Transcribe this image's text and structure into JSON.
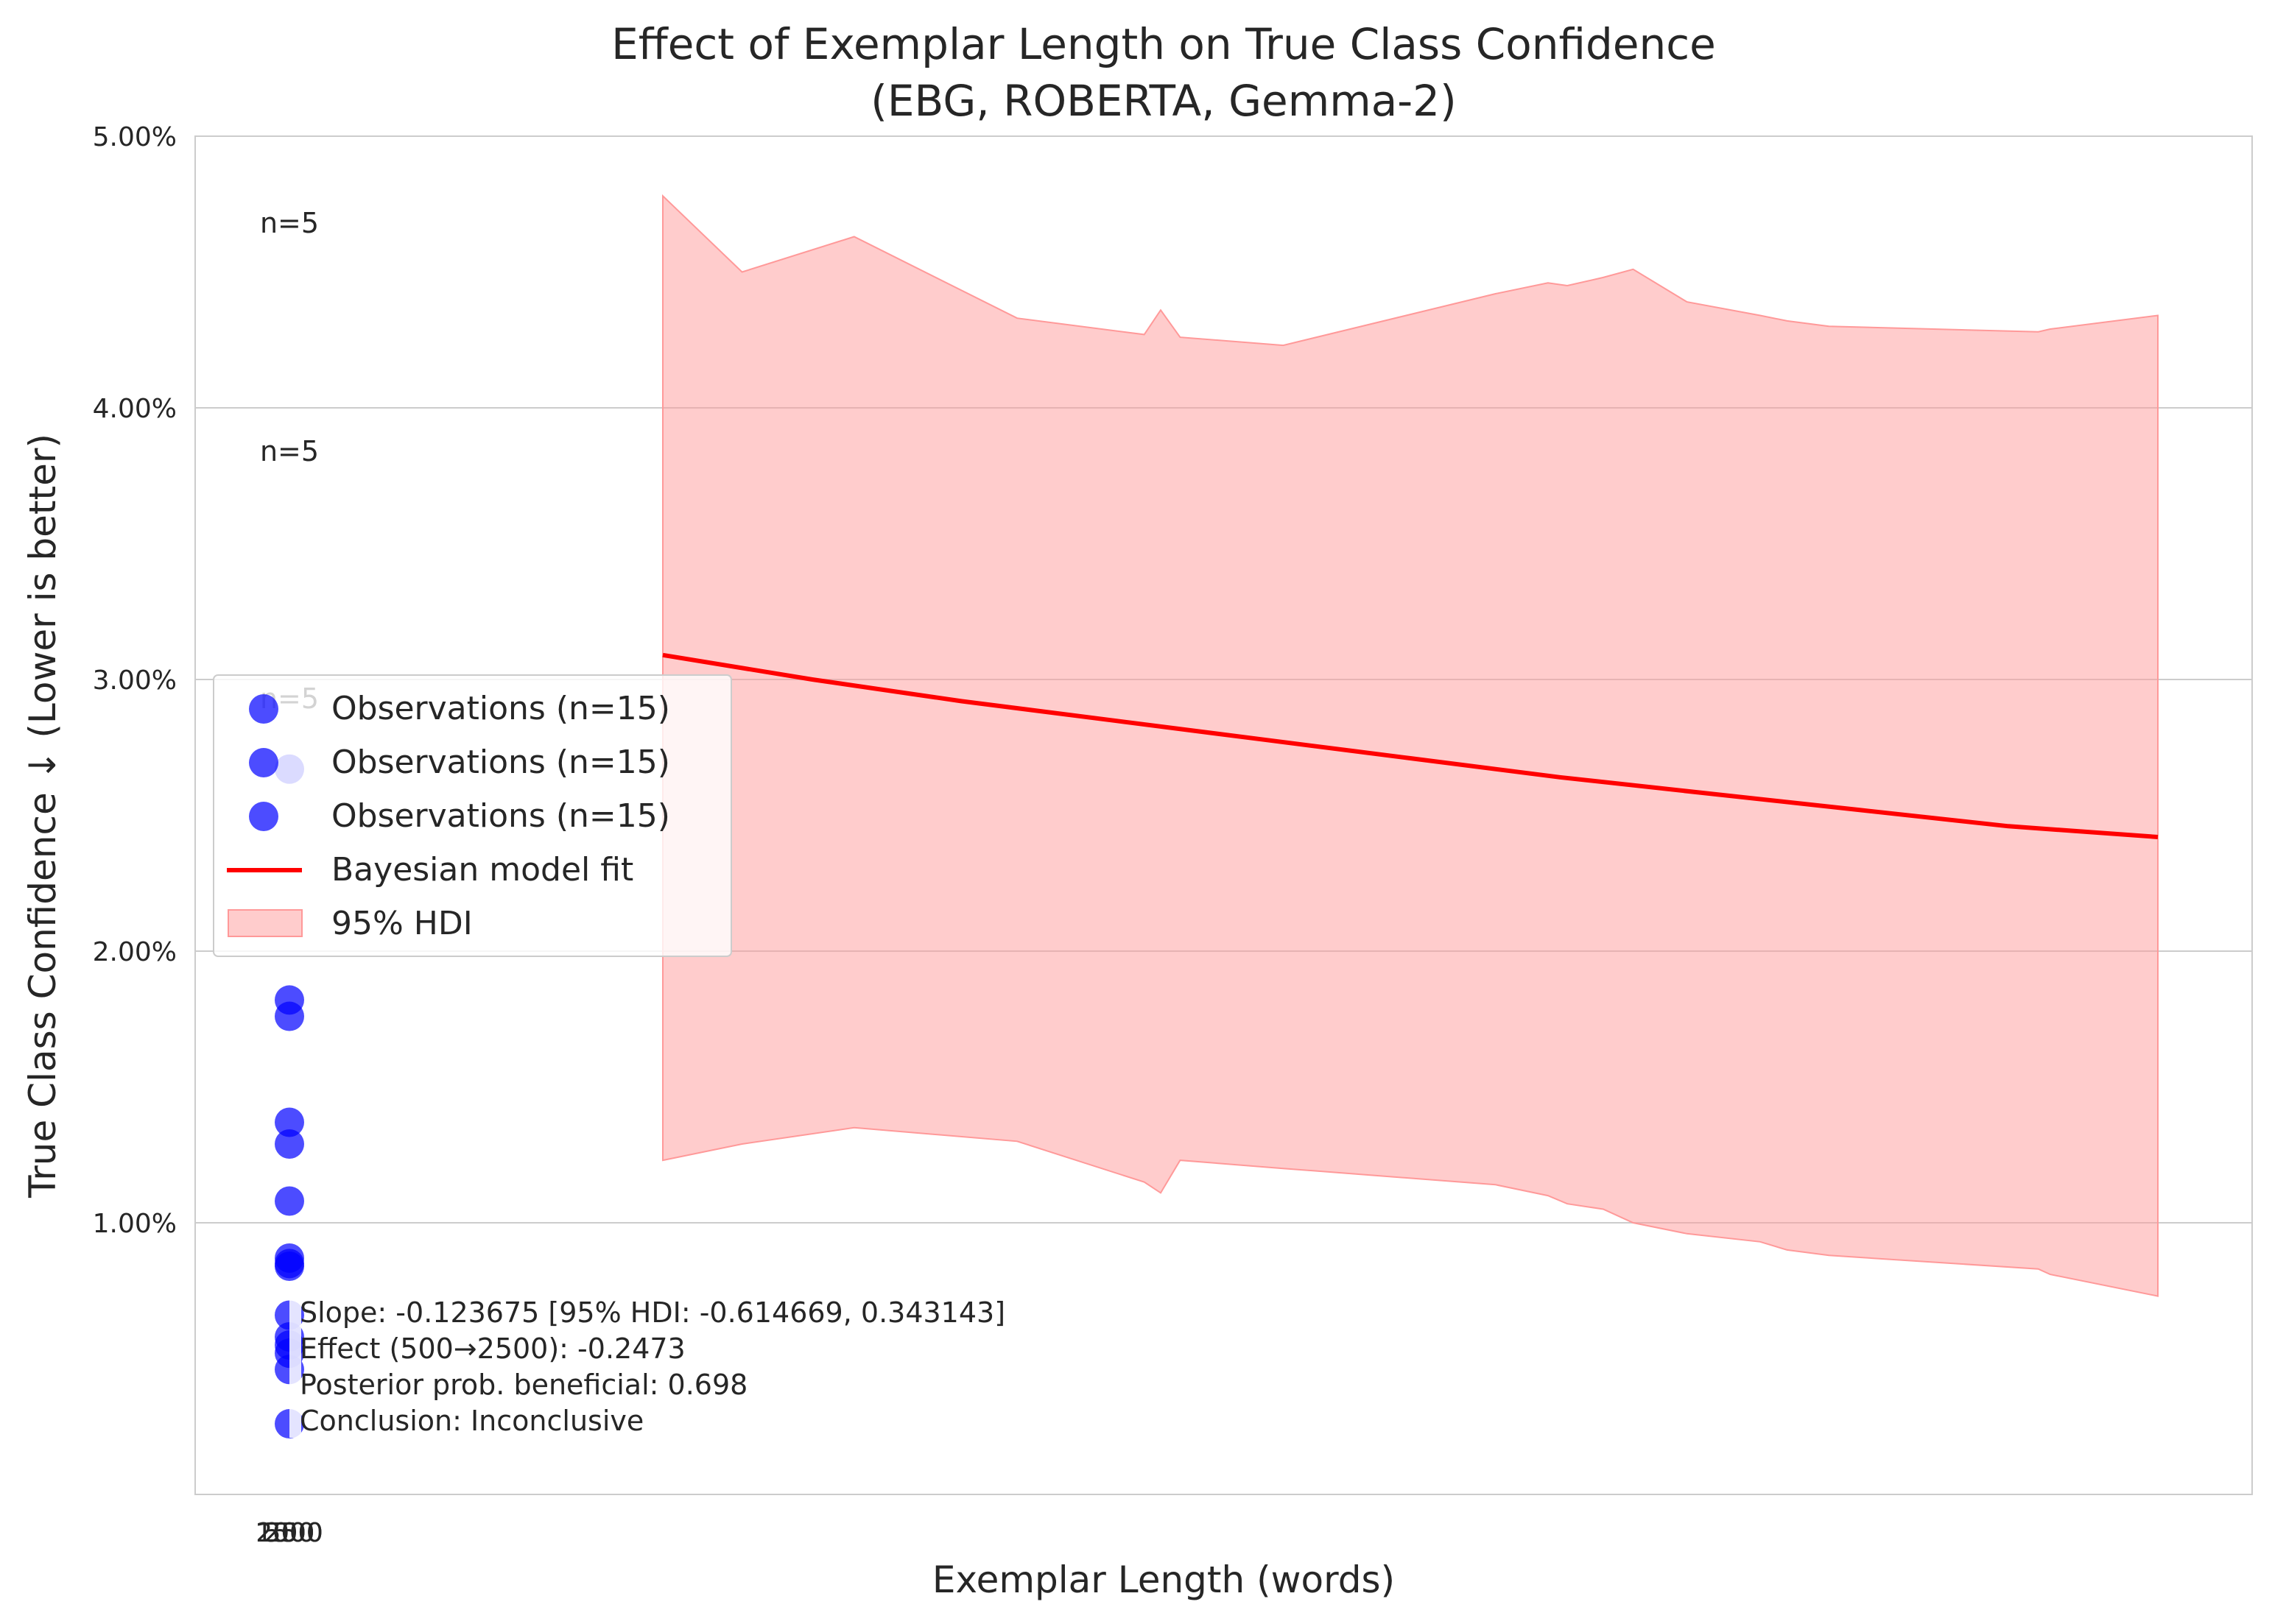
{
  "chart_data": {
    "type": "scatter",
    "title": [
      "Effect of Exemplar Length on True Class Confidence",
      "(EBG, ROBERTA, Gemma-2)"
    ],
    "xlabel": "Exemplar Length (words)",
    "ylabel": "True Class Confidence ↓ (Lower is better)",
    "ylim": [
      0.0,
      5.0
    ],
    "y_ticks": [
      {
        "value": 1.0,
        "label": "1.00%"
      },
      {
        "value": 2.0,
        "label": "2.00%"
      },
      {
        "value": 3.0,
        "label": "3.00%"
      },
      {
        "value": 4.0,
        "label": "4.00%"
      },
      {
        "value": 5.0,
        "label": "5.00%"
      }
    ],
    "x_tick_labels": [
      "250",
      "500",
      "1000",
      "2500"
    ],
    "grid": "horizontal",
    "legend_placement": "center-left",
    "observations": [
      {
        "name": "Observations (n=15)",
        "color": "#0000ff",
        "y": [
          2.67,
          1.82,
          1.76,
          1.37,
          1.29,
          1.08,
          0.87,
          0.85,
          0.84,
          0.66,
          0.58,
          0.55,
          0.52,
          0.46,
          0.26
        ]
      },
      {
        "name": "Observations (n=15)",
        "color": "#0000ff",
        "y": []
      },
      {
        "name": "Observations (n=15)",
        "color": "#0000ff",
        "y": []
      }
    ],
    "n_labels": [
      {
        "text": "n=5",
        "y": 4.68
      },
      {
        "text": "n=5",
        "y": 3.84
      },
      {
        "text": "n=5",
        "y": 2.93
      }
    ],
    "fit": {
      "name": "Bayesian model fit",
      "color": "#ff0000",
      "x_frac": [
        0.0,
        0.1,
        0.2,
        0.3,
        0.4,
        0.5,
        0.6,
        0.7,
        0.8,
        0.9,
        1.0
      ],
      "y": [
        3.09,
        3.0,
        2.92,
        2.85,
        2.78,
        2.71,
        2.64,
        2.58,
        2.52,
        2.46,
        2.42
      ]
    },
    "hdi": {
      "name": "95% HDI",
      "color": "#ff9999",
      "x_frac": [
        0.0,
        0.053,
        0.128,
        0.237,
        0.322,
        0.333,
        0.346,
        0.415,
        0.557,
        0.592,
        0.605,
        0.629,
        0.649,
        0.685,
        0.734,
        0.752,
        0.78,
        0.92,
        0.928,
        1.0
      ],
      "upper": [
        4.78,
        4.5,
        4.63,
        4.33,
        4.27,
        4.36,
        4.26,
        4.23,
        4.42,
        4.46,
        4.45,
        4.48,
        4.51,
        4.39,
        4.34,
        4.32,
        4.3,
        4.28,
        4.29,
        4.34
      ],
      "lower": [
        1.23,
        1.29,
        1.35,
        1.3,
        1.15,
        1.11,
        1.23,
        1.2,
        1.14,
        1.1,
        1.07,
        1.05,
        1.0,
        0.96,
        0.93,
        0.9,
        0.88,
        0.83,
        0.81,
        0.73
      ]
    },
    "annotation": [
      "Slope: -0.123675 [95% HDI: -0.614669, 0.343143]",
      "Effect (500→2500): -0.2473",
      "Posterior prob. beneficial: 0.698",
      "Conclusion: Inconclusive"
    ]
  }
}
